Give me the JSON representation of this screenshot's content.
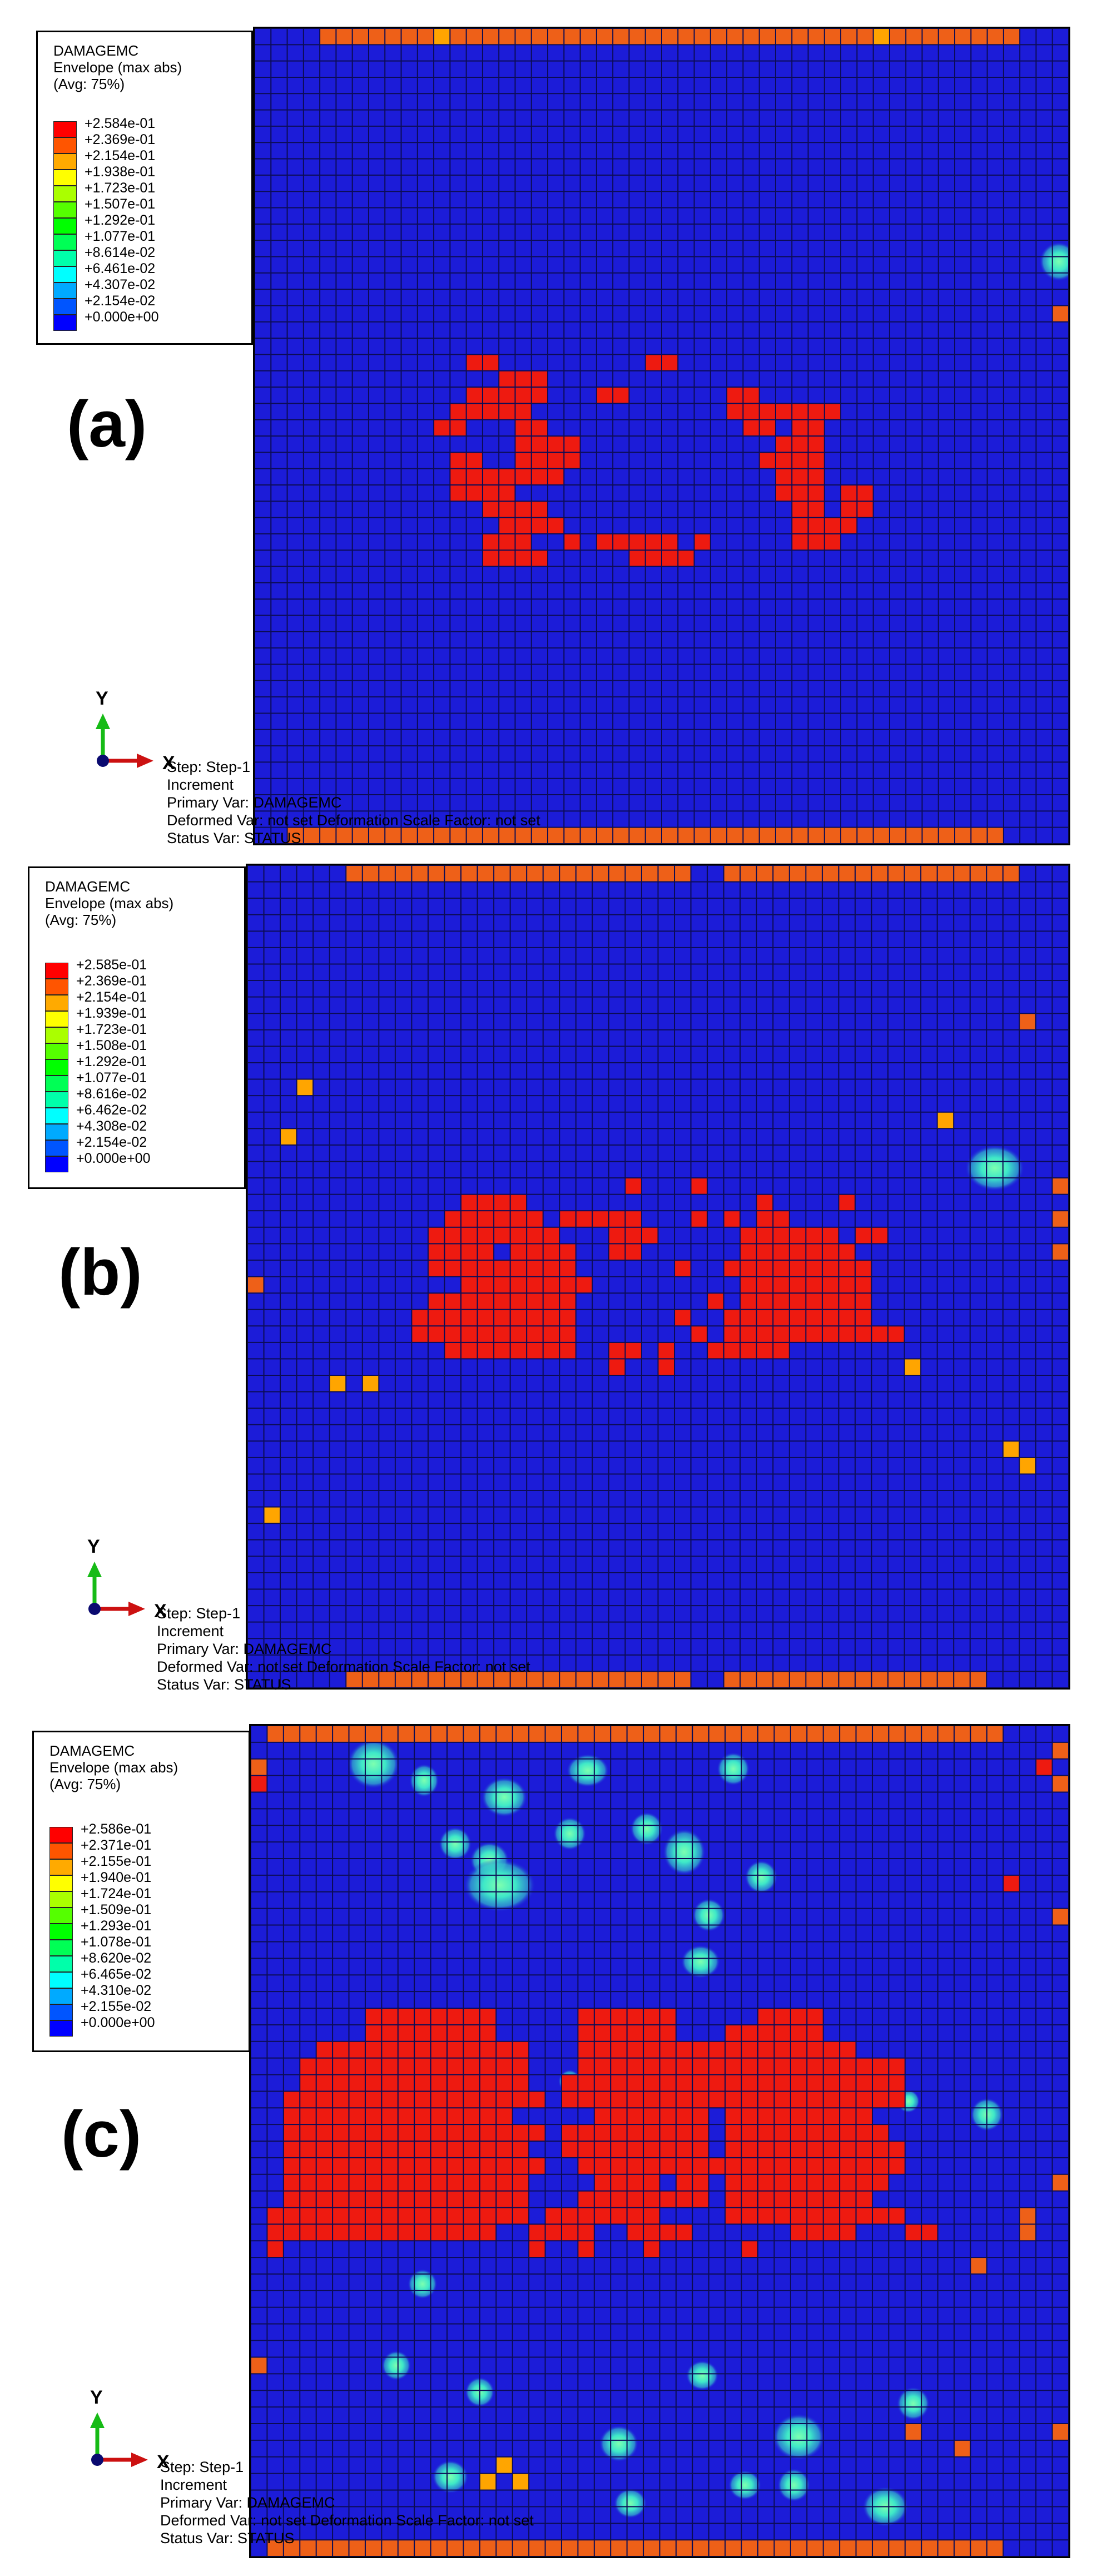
{
  "colors": {
    "mesh_bg": "#1c1cd8",
    "grid": "#0c0c55",
    "damaged": "#ee1a10",
    "edge": "#ee6018",
    "partial": "#ffa500",
    "hot": "#3ee8c8",
    "light": "#33b8cc",
    "x_axis": "#cc1111",
    "y_axis": "#16bb16"
  },
  "colormap": [
    "#ff0000",
    "#ff5500",
    "#ffaa00",
    "#ffff00",
    "#aaff00",
    "#55ff00",
    "#00ff00",
    "#00ff55",
    "#00ffaa",
    "#00ffff",
    "#00aaff",
    "#0055ff",
    "#0000ff"
  ],
  "panels": [
    {
      "id": "a",
      "label": "(a)",
      "legend": {
        "title1": "DAMAGEMC",
        "title2": "Envelope (max abs)",
        "title3": "(Avg: 75%)",
        "values": [
          "+2.584e-01",
          "+2.369e-01",
          "+2.154e-01",
          "+1.938e-01",
          "+1.723e-01",
          "+1.507e-01",
          "+1.292e-01",
          "+1.077e-01",
          "+8.614e-02",
          "+6.461e-02",
          "+4.307e-02",
          "+2.154e-02",
          "+0.000e+00"
        ]
      },
      "triad": {
        "y": "Y",
        "x": "X"
      },
      "status": {
        "step": "Step: Step-1",
        "increment": "Increment",
        "primary": "Primary Var: DAMAGEMC",
        "deformed": "Deformed Var: not set  Deformation Scale Factor: not set",
        "statusvar": "Status Var: STATUS"
      }
    },
    {
      "id": "b",
      "label": "(b)",
      "legend": {
        "title1": "DAMAGEMC",
        "title2": "Envelope (max abs)",
        "title3": "(Avg: 75%)",
        "values": [
          "+2.585e-01",
          "+2.369e-01",
          "+2.154e-01",
          "+1.939e-01",
          "+1.723e-01",
          "+1.508e-01",
          "+1.292e-01",
          "+1.077e-01",
          "+8.616e-02",
          "+6.462e-02",
          "+4.308e-02",
          "+2.154e-02",
          "+0.000e+00"
        ]
      },
      "triad": {
        "y": "Y",
        "x": "X"
      },
      "status": {
        "step": "Step: Step-1",
        "increment": "Increment",
        "primary": "Primary Var: DAMAGEMC",
        "deformed": "Deformed Var: not set  Deformation Scale Factor: not set",
        "statusvar": "Status Var: STATUS"
      }
    },
    {
      "id": "c",
      "label": "(c)",
      "legend": {
        "title1": "DAMAGEMC",
        "title2": "Envelope (max abs)",
        "title3": "(Avg: 75%)",
        "values": [
          "+2.586e-01",
          "+2.371e-01",
          "+2.155e-01",
          "+1.940e-01",
          "+1.724e-01",
          "+1.509e-01",
          "+1.293e-01",
          "+1.078e-01",
          "+8.620e-02",
          "+6.465e-02",
          "+4.310e-02",
          "+2.155e-02",
          "+0.000e+00"
        ]
      },
      "triad": {
        "y": "Y",
        "x": "X"
      },
      "status": {
        "step": "Step: Step-1",
        "increment": "Increment",
        "primary": "Primary Var: DAMAGEMC",
        "deformed": "Deformed Var: not set  Deformation Scale Factor: not set",
        "statusvar": "Status Var: STATUS"
      }
    }
  ]
}
